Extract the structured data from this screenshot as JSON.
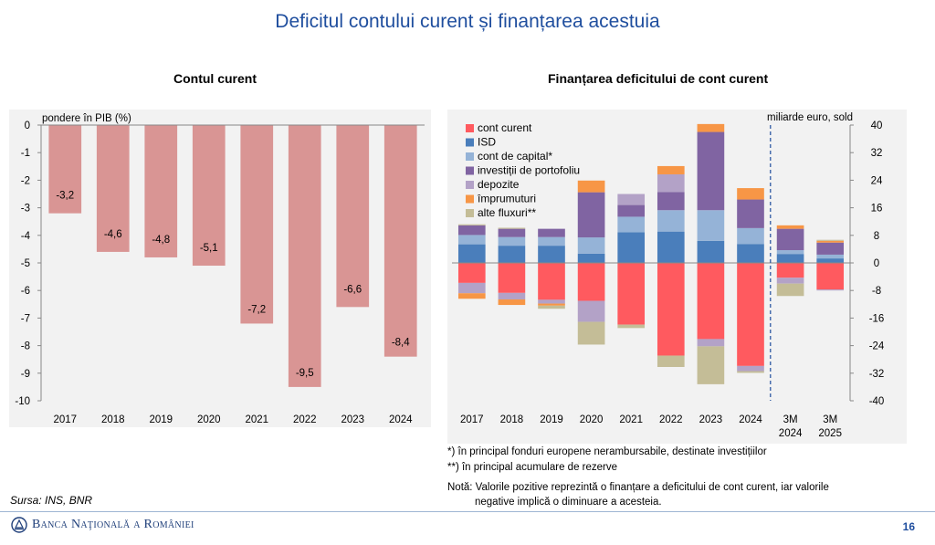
{
  "page": {
    "title": "Deficitul contului curent și finanțarea acestuia",
    "source": "Sursa: INS, BNR",
    "logo_text": "Banca Naţională a României",
    "page_number": "16"
  },
  "footnotes": {
    "note1": "*) în principal fonduri europene nerambursabile, destinate investițiilor",
    "note2": "**) în principal acumulare de rezerve",
    "note3_line1": "Notă: Valorile pozitive reprezintă o finanțare a deficitului de cont curent, iar valorile",
    "note3_line2": "negative implică o diminuare a acesteia."
  },
  "chart_data": [
    {
      "type": "bar",
      "title": "Contul curent",
      "ylabel": "pondere în PIB (%)",
      "categories": [
        "2017",
        "2018",
        "2019",
        "2020",
        "2021",
        "2022",
        "2023",
        "2024"
      ],
      "values": [
        -3.2,
        -4.6,
        -4.8,
        -5.1,
        -7.2,
        -9.5,
        -6.6,
        -8.4
      ],
      "data_labels": [
        "-3,2",
        "-4,6",
        "-4,8",
        "-5,1",
        "-7,2",
        "-9,5",
        "-6,6",
        "-8,4"
      ],
      "ylim": [
        -10,
        0
      ],
      "yticks": [
        "0",
        "-1",
        "-2",
        "-3",
        "-4",
        "-5",
        "-6",
        "-7",
        "-8",
        "-9",
        "-10"
      ],
      "colors": {
        "bar": "#d99594",
        "background": "#f2f2f2"
      }
    },
    {
      "type": "bar",
      "stacked": true,
      "title": "Finanțarea deficitului de cont curent",
      "ylabel": "miliarde euro, sold",
      "categories": [
        "2017",
        "2018",
        "2019",
        "2020",
        "2021",
        "2022",
        "2023",
        "2024",
        "3M 2024",
        "3M 2025"
      ],
      "category_lines": [
        [
          "2017"
        ],
        [
          "2018"
        ],
        [
          "2019"
        ],
        [
          "2020"
        ],
        [
          "2021"
        ],
        [
          "2022"
        ],
        [
          "2023"
        ],
        [
          "2024"
        ],
        [
          "3M",
          "2024"
        ],
        [
          "3M",
          "2025"
        ]
      ],
      "ylim": [
        -40,
        40
      ],
      "yticks": [
        "40",
        "32",
        "24",
        "16",
        "8",
        "0",
        "-8",
        "-16",
        "-24",
        "-32",
        "-40"
      ],
      "legend_position": "top-left",
      "series": [
        {
          "name": "cont curent",
          "color": "#ff5a5f",
          "values": [
            -5.8,
            -8.7,
            -10.7,
            -11.0,
            -17.9,
            -26.9,
            -22.1,
            -29.9,
            -4.3,
            -7.7
          ]
        },
        {
          "name": "ISD",
          "color": "#4a7ebb",
          "values": [
            5.4,
            5.0,
            5.0,
            2.7,
            8.9,
            9.1,
            6.4,
            5.5,
            2.6,
            1.3
          ]
        },
        {
          "name": "cont de capital*",
          "color": "#95b3d7",
          "values": [
            2.7,
            2.5,
            2.5,
            4.7,
            4.5,
            6.2,
            8.9,
            4.6,
            1.1,
            1.1
          ]
        },
        {
          "name": "investiții de portofoliu",
          "color": "#8064a2",
          "values": [
            2.8,
            2.4,
            2.4,
            13.1,
            3.4,
            5.3,
            22.7,
            8.3,
            6.2,
            3.5
          ]
        },
        {
          "name": "depozite",
          "color": "#b3a2c7",
          "values": [
            -3.0,
            -1.9,
            -1.1,
            -6.1,
            3.2,
            5.1,
            -2.1,
            -1.5,
            -1.7,
            -0.3
          ]
        },
        {
          "name": "împrumuturi",
          "color": "#f79646",
          "values": [
            -1.6,
            -1.6,
            -0.6,
            3.4,
            0,
            2.4,
            2.3,
            3.3,
            1.0,
            0.5
          ]
        },
        {
          "name": "alte fluxuri**",
          "color": "#c4bd97",
          "values": [
            0.3,
            0.3,
            -0.9,
            -6.6,
            -1.0,
            -3.3,
            -11.0,
            -0.5,
            -3.6,
            0.3
          ]
        }
      ],
      "divider_between": [
        "2024",
        "3M 2024"
      ],
      "colors": {
        "divider": "#1f4e9e",
        "background": "#f2f2f2"
      }
    }
  ]
}
